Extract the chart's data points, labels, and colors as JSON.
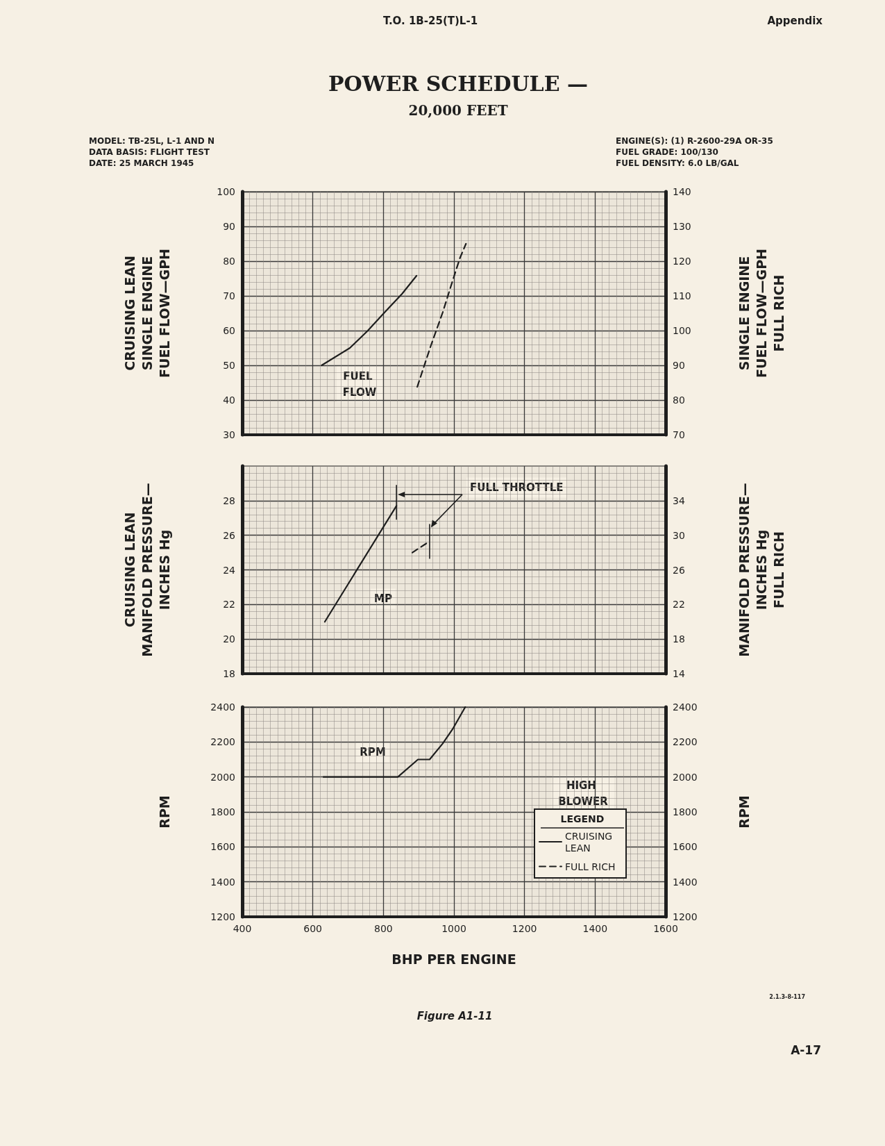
{
  "chart_data": [
    {
      "type": "line",
      "title": "POWER SCHEDULE —",
      "subtitle": "20,000 FEET",
      "ylabel": "CRUISING LEAN\nSINGLE ENGINE\nFUEL FLOW—GPH",
      "y2label": "SINGLE ENGINE\nFUEL FLOW—GPH\nFULL RICH",
      "series": [
        {
          "x": [
            625,
            705,
            755,
            803,
            853,
            894
          ],
          "values": [
            50,
            55,
            59.9,
            65.2,
            70.6,
            75.8
          ],
          "color": "#1e1e1e",
          "line_style": "solid"
        },
        {
          "x": [
            896,
            935,
            968,
            992,
            1017,
            1034
          ],
          "values": [
            83.8,
            95.8,
            105.2,
            113,
            120.9,
            125
          ],
          "color": "#1e1e1e",
          "line_style": "dashed",
          "axis": "y2"
        }
      ],
      "xlim": [
        400,
        1600
      ],
      "xticks": [
        400,
        600,
        800,
        1000,
        1200,
        1400,
        1600
      ],
      "ylim": [
        30,
        100
      ],
      "yticks": [
        30,
        40,
        50,
        60,
        70,
        80,
        90,
        100
      ],
      "y2lim": [
        70,
        140
      ],
      "y2ticks": [
        70,
        80,
        90,
        100,
        110,
        120,
        130,
        140
      ],
      "tick_labels": "y",
      "grid": true,
      "marker": "none",
      "legend": false,
      "annotations": [
        "T.O. 1B-25(T)L-1",
        "Appendix",
        "MODEL: TB-25L, L-1 AND N",
        "DATA BASIS: FLIGHT TEST",
        "DATE: 25 MARCH 1945",
        "ENGINE(S): (1) R-2600-29A OR-35",
        "FUEL GRADE: 100/130",
        "FUEL DENSITY: 6.0 LB/GAL",
        "FUEL FLOW"
      ]
    },
    {
      "type": "line",
      "ylabel": "CRUISING LEAN\nMANIFOLD PRESSURE—\nINCHES Hg",
      "y2label": "MANIFOLD PRESSURE—\nINCHES Hg\nFULL RICH",
      "series": [
        {
          "x": [
            634,
            837
          ],
          "values": [
            21,
            27.7
          ],
          "color": "#1e1e1e",
          "line_style": "solid"
        },
        {
          "x": [
            882,
            931
          ],
          "values": [
            28,
            29.3
          ],
          "color": "#1e1e1e",
          "line_style": "dashed",
          "axis": "y2"
        }
      ],
      "xlim": [
        400,
        1600
      ],
      "xticks": [
        400,
        600,
        800,
        1000,
        1200,
        1400,
        1600
      ],
      "ylim": [
        18,
        30
      ],
      "yticks": [
        18,
        20,
        22,
        24,
        26,
        28
      ],
      "y2lim": [
        14,
        38
      ],
      "y2ticks": [
        14,
        18,
        22,
        26,
        30,
        34
      ],
      "tick_labels": "y",
      "grid": true,
      "marker": "none",
      "legend": false,
      "annotations": [
        "FULL THROTTLE",
        "MP"
      ]
    },
    {
      "type": "line",
      "xlabel": "BHP PER ENGINE",
      "ylabel": "RPM",
      "y2label": "RPM",
      "legend_title": "LEGEND",
      "series": [
        {
          "name": "CRUISING LEAN",
          "x": [
            630,
            841,
            898,
            931,
            968,
            996,
            1032
          ],
          "values": [
            2000,
            2000,
            2100,
            2100,
            2191,
            2273,
            2400
          ],
          "color": "#1e1e1e",
          "line_style": "solid"
        },
        {
          "name": "FULL RICH",
          "color": "#1e1e1e",
          "line_style": "dashed"
        }
      ],
      "xlim": [
        400,
        1600
      ],
      "xticks": [
        400,
        600,
        800,
        1000,
        1200,
        1400,
        1600
      ],
      "ylim": [
        1200,
        2400
      ],
      "yticks": [
        1200,
        1400,
        1600,
        1800,
        2000,
        2200,
        2400
      ],
      "y2lim": [
        1200,
        2400
      ],
      "y2ticks": [
        1200,
        1400,
        1600,
        1800,
        2000,
        2200,
        2400
      ],
      "grid": true,
      "marker": "none",
      "legend": "bottom right",
      "annotations": [
        "RPM",
        "HIGH BLOWER",
        "Figure A1-11",
        "2.1.3-8-117",
        "A-17"
      ]
    }
  ]
}
